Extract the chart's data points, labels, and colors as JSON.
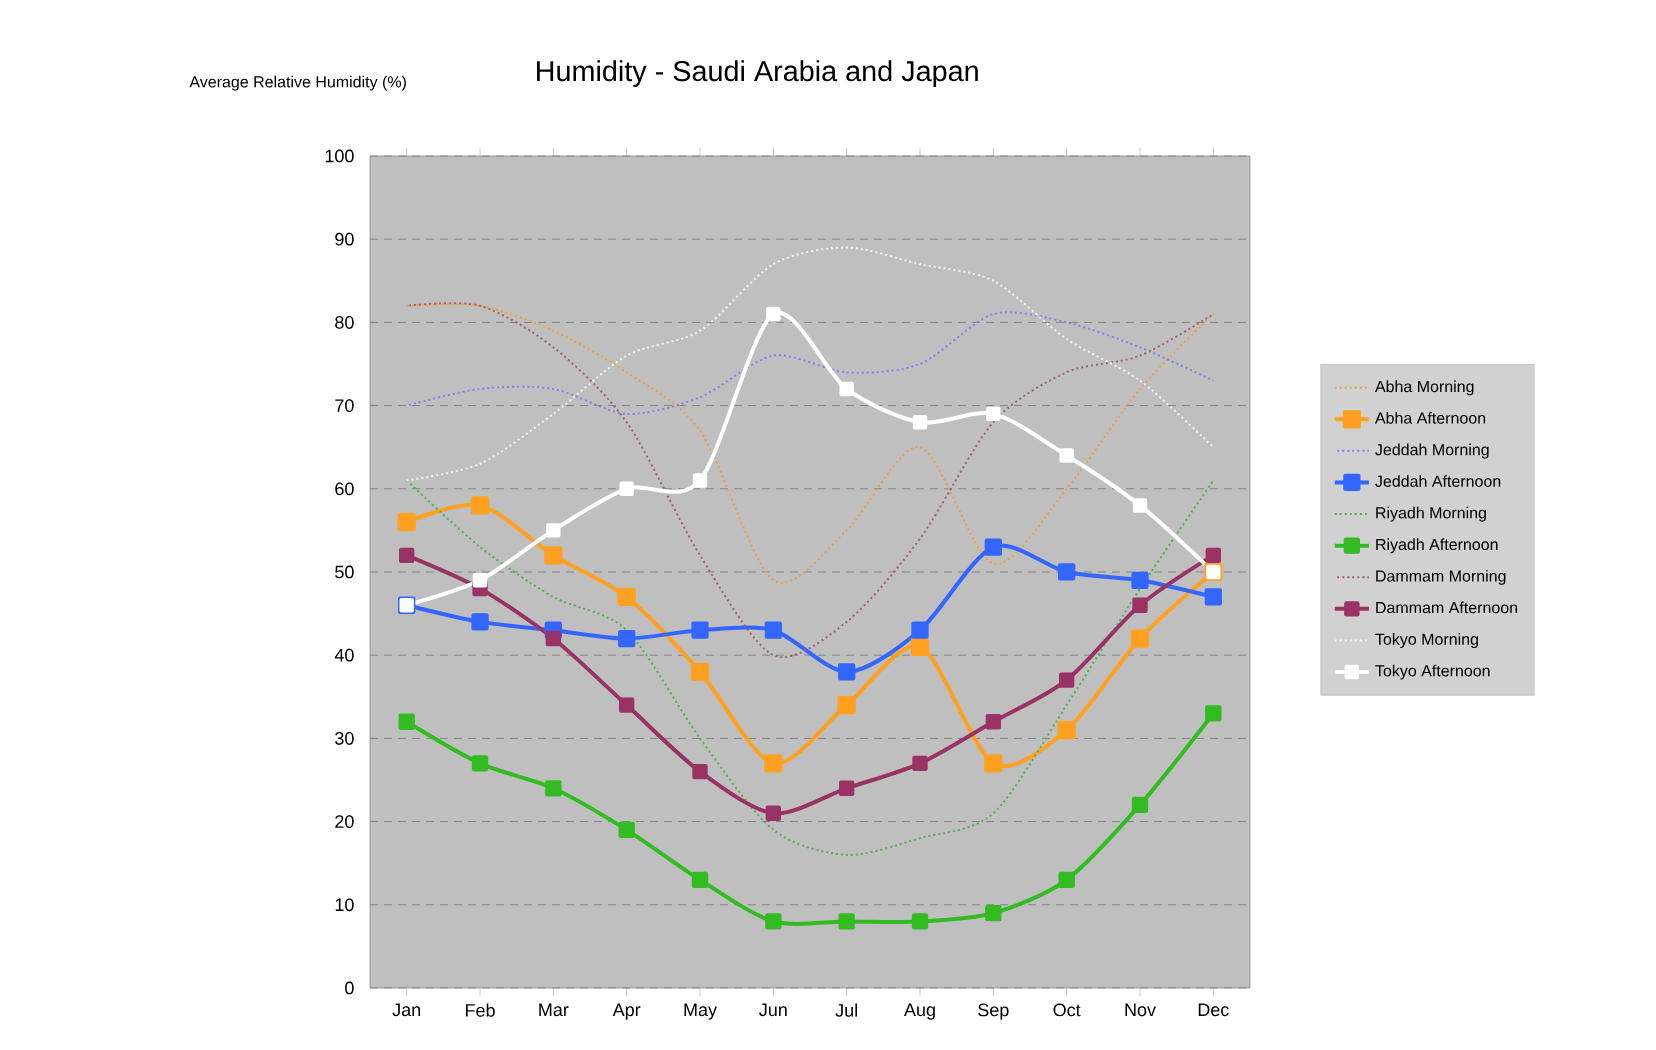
{
  "chart_data": {
    "type": "line",
    "title": "Humidity - Saudi Arabia and Japan",
    "ylabel": "Average Relative Humidity (%)",
    "categories": [
      "Jan",
      "Feb",
      "Mar",
      "Apr",
      "May",
      "Jun",
      "Jul",
      "Aug",
      "Sep",
      "Oct",
      "Nov",
      "Dec"
    ],
    "ylim": [
      0,
      100
    ],
    "yticks": [
      0,
      10,
      20,
      30,
      40,
      50,
      60,
      70,
      80,
      90,
      100
    ],
    "grid": "y",
    "legend": "right",
    "series": [
      {
        "name": "Abha Morning",
        "color": "#f0a040",
        "line_style": "dotted",
        "marker": "none",
        "values": [
          82,
          82,
          79,
          74,
          67,
          49,
          55,
          65,
          51,
          60,
          72,
          81
        ]
      },
      {
        "name": "Abha Afternoon",
        "color": "#ffa020",
        "line_style": "solid",
        "marker": "square",
        "values": [
          56,
          58,
          52,
          47,
          38,
          27,
          34,
          41,
          27,
          31,
          42,
          50
        ]
      },
      {
        "name": "Jeddah Morning",
        "color": "#8080ee",
        "line_style": "dotted",
        "marker": "none",
        "values": [
          70,
          72,
          72,
          69,
          71,
          76,
          74,
          75,
          81,
          80,
          77,
          73
        ]
      },
      {
        "name": "Jeddah Afternoon",
        "color": "#3366ff",
        "line_style": "solid",
        "marker": "square",
        "values": [
          46,
          44,
          43,
          42,
          43,
          43,
          38,
          43,
          53,
          50,
          49,
          47
        ]
      },
      {
        "name": "Riyadh Morning",
        "color": "#50b050",
        "line_style": "dotted",
        "marker": "none",
        "values": [
          61,
          53,
          47,
          43,
          30,
          19,
          16,
          18,
          21,
          34,
          48,
          61
        ]
      },
      {
        "name": "Riyadh Afternoon",
        "color": "#33bb22",
        "line_style": "solid",
        "marker": "square",
        "values": [
          32,
          27,
          24,
          19,
          13,
          8,
          8,
          8,
          9,
          13,
          22,
          33
        ]
      },
      {
        "name": "Dammam Morning",
        "color": "#a06070",
        "line_style": "dotted",
        "marker": "none",
        "values": [
          82,
          82,
          77,
          68,
          52,
          40,
          44,
          54,
          68,
          74,
          76,
          81
        ]
      },
      {
        "name": "Dammam Afternoon",
        "color": "#993366",
        "line_style": "solid",
        "marker": "square",
        "values": [
          52,
          48,
          42,
          34,
          26,
          21,
          24,
          27,
          32,
          37,
          46,
          52
        ]
      },
      {
        "name": "Tokyo Morning",
        "color": "#f4f4f4",
        "line_style": "dotted",
        "marker": "none",
        "values": [
          61,
          63,
          69,
          76,
          79,
          87,
          89,
          87,
          85,
          78,
          73,
          65
        ]
      },
      {
        "name": "Tokyo Afternoon",
        "color": "#ffffff",
        "line_style": "solid",
        "marker": "square",
        "values": [
          46,
          49,
          55,
          60,
          61,
          81,
          72,
          68,
          69,
          64,
          58,
          50
        ]
      }
    ]
  }
}
